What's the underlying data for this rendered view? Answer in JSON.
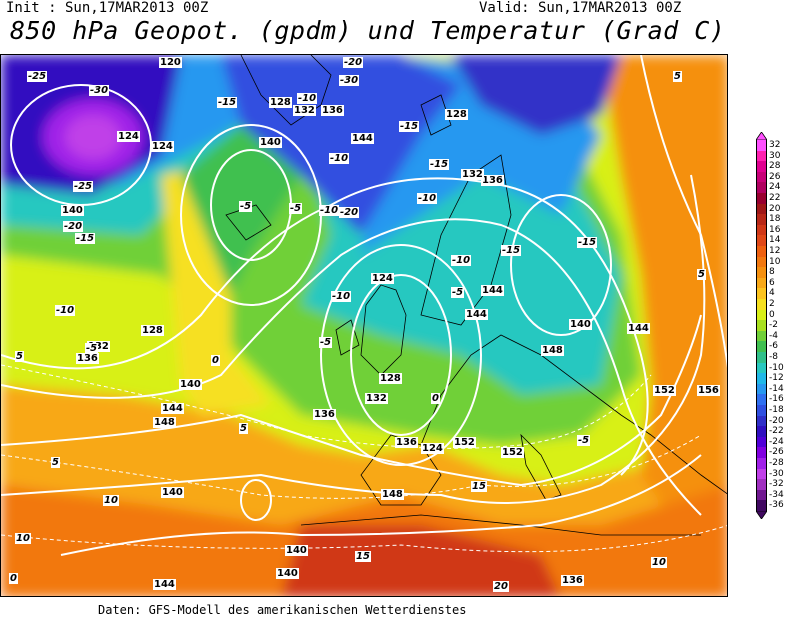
{
  "header": {
    "init": "Init : Sun,17MAR2013 00Z",
    "valid": "Valid: Sun,17MAR2013 00Z",
    "title": "850 hPa Geopot. (gpdm) und Temperatur (Grad C)"
  },
  "footer": "Daten: GFS-Modell des amerikanischen Wetterdienstes",
  "colors": {
    "contour": "#ffffff",
    "coast": "#000000"
  },
  "legend": {
    "levels": [
      {
        "label": "32",
        "color": "#ff50ff"
      },
      {
        "label": "30",
        "color": "#ff20b0"
      },
      {
        "label": "28",
        "color": "#e00090"
      },
      {
        "label": "26",
        "color": "#c80078"
      },
      {
        "label": "24",
        "color": "#b00060"
      },
      {
        "label": "22",
        "color": "#980030"
      },
      {
        "label": "20",
        "color": "#a01818"
      },
      {
        "label": "18",
        "color": "#b82818"
      },
      {
        "label": "16",
        "color": "#d03818"
      },
      {
        "label": "14",
        "color": "#e04818"
      },
      {
        "label": "12",
        "color": "#ee6010"
      },
      {
        "label": "10",
        "color": "#f27810"
      },
      {
        "label": "8",
        "color": "#f59010"
      },
      {
        "label": "6",
        "color": "#f8a818"
      },
      {
        "label": "4",
        "color": "#fcc420"
      },
      {
        "label": "2",
        "color": "#f6e020"
      },
      {
        "label": "0",
        "color": "#d8f018"
      },
      {
        "label": "-2",
        "color": "#a8e020"
      },
      {
        "label": "-4",
        "color": "#70d038"
      },
      {
        "label": "-6",
        "color": "#40c050"
      },
      {
        "label": "-8",
        "color": "#30c08a"
      },
      {
        "label": "-10",
        "color": "#28c8c0"
      },
      {
        "label": "-12",
        "color": "#20b8e8"
      },
      {
        "label": "-14",
        "color": "#2898f0"
      },
      {
        "label": "-16",
        "color": "#3070f0"
      },
      {
        "label": "-18",
        "color": "#3050e0"
      },
      {
        "label": "-20",
        "color": "#3030c8"
      },
      {
        "label": "-22",
        "color": "#3010c0"
      },
      {
        "label": "-24",
        "color": "#5000d8"
      },
      {
        "label": "-26",
        "color": "#8000e0"
      },
      {
        "label": "-28",
        "color": "#a020e8"
      },
      {
        "label": "-30",
        "color": "#c040e8"
      },
      {
        "label": "-32",
        "color": "#a030c0"
      },
      {
        "label": "-34",
        "color": "#701890"
      },
      {
        "label": "-36",
        "color": "#400860"
      }
    ]
  },
  "geopotential_labels": [
    "120",
    "124",
    "124",
    "128",
    "128",
    "132",
    "132",
    "136",
    "136",
    "136",
    "140",
    "140",
    "140",
    "144",
    "144",
    "144",
    "148",
    "148",
    "152",
    "152",
    "156",
    "124",
    "128",
    "132",
    "136",
    "140",
    "140",
    "144",
    "148",
    "124",
    "128",
    "132",
    "136",
    "140",
    "144",
    "152",
    "136",
    "140",
    "144"
  ],
  "temperature_labels": [
    "-25",
    "-30",
    "-25",
    "-20",
    "-15",
    "-10",
    "-5",
    "0",
    "-30",
    "-20",
    "-15",
    "-10",
    "-5",
    "-15",
    "-10",
    "-15",
    "-10",
    "-5",
    "-10",
    "-15",
    "-10",
    "-5",
    "-15",
    "-20",
    "-5",
    "-10",
    "0",
    "5",
    "5",
    "5",
    "10",
    "10",
    "15",
    "15",
    "20",
    "10",
    "5",
    "0",
    "-5",
    "5"
  ]
}
